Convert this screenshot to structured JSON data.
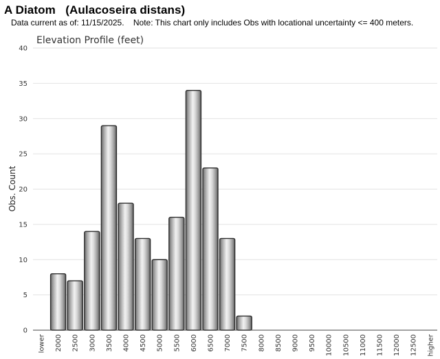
{
  "page": {
    "title": "A Diatom   (Aulacoseira distans)",
    "note": "Data current as of: 11/15/2025.    Note: This chart only includes Obs with locational uncertainty <= 400 meters."
  },
  "chart_data": {
    "type": "bar",
    "title": "Elevation Profile (feet)",
    "xlabel": "",
    "ylabel": "Obs. Count",
    "ylim": [
      0,
      40
    ],
    "yticks": [
      0,
      5,
      10,
      15,
      20,
      25,
      30,
      35,
      40
    ],
    "grid": true,
    "categories": [
      "lower",
      "2000",
      "2500",
      "3000",
      "3500",
      "4000",
      "4500",
      "5000",
      "5500",
      "6000",
      "6500",
      "7000",
      "7500",
      "8000",
      "8500",
      "9000",
      "9500",
      "10000",
      "10500",
      "11000",
      "11500",
      "12000",
      "12500",
      "higher"
    ],
    "values": [
      0,
      8,
      7,
      14,
      29,
      18,
      13,
      10,
      16,
      34,
      23,
      13,
      2,
      0,
      0,
      0,
      0,
      0,
      0,
      0,
      0,
      0,
      0,
      0
    ],
    "bar_color": "#b0b0b0"
  }
}
